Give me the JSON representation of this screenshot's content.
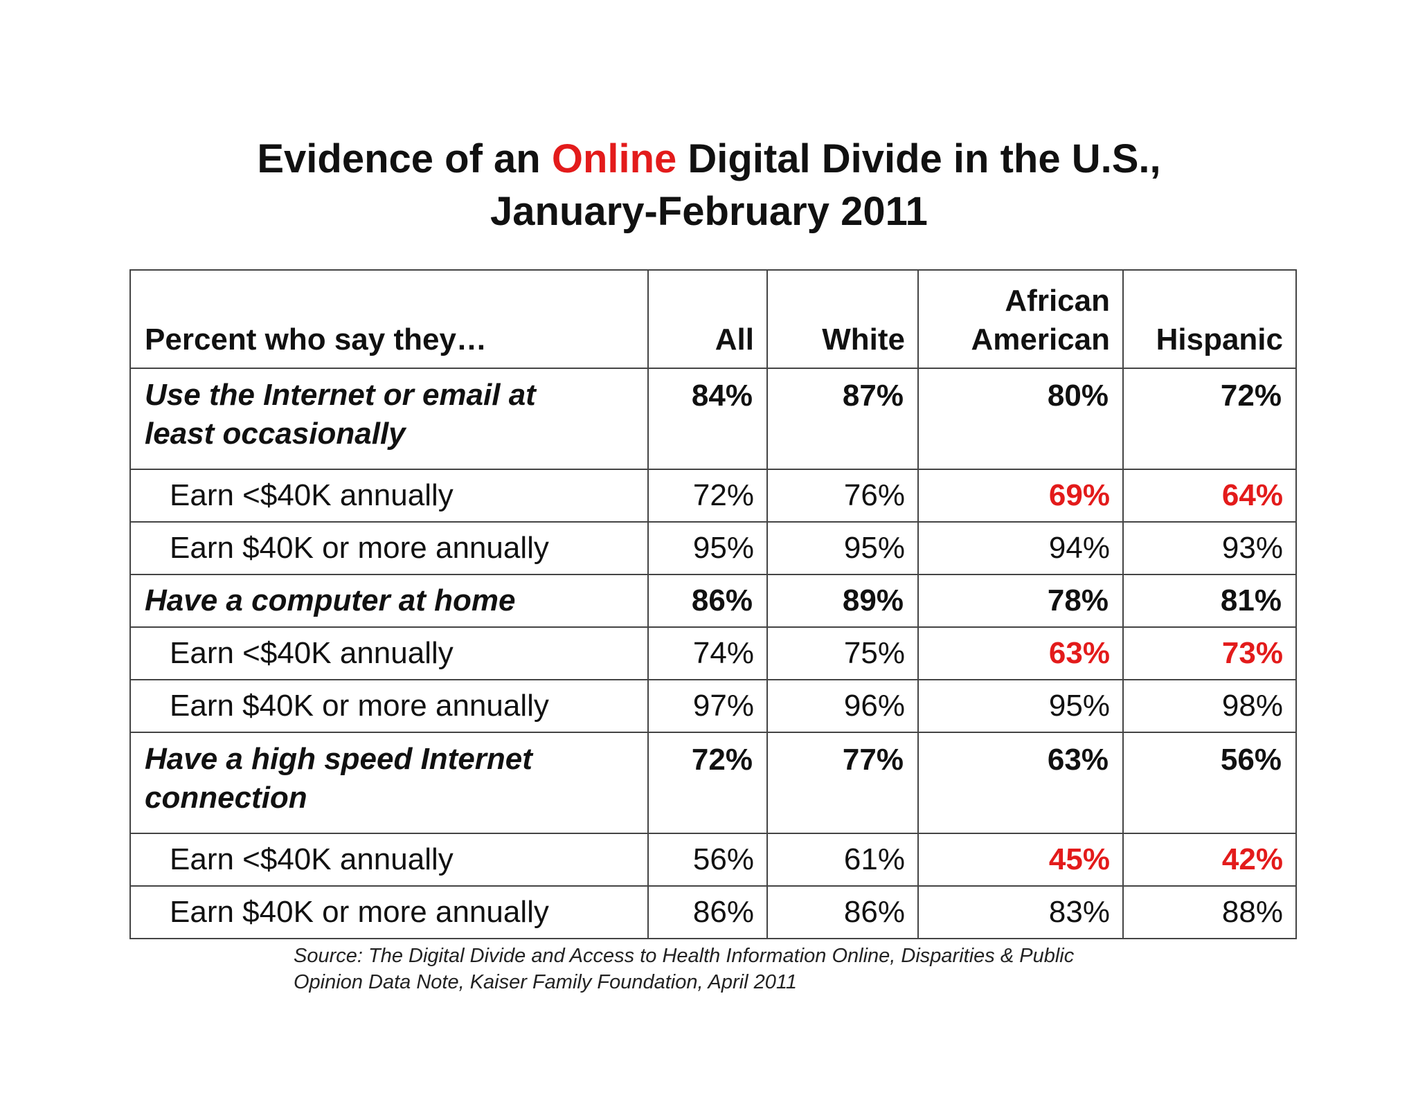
{
  "title": {
    "line1_before": "Evidence of an ",
    "line1_highlight": "Online",
    "line1_after": " Digital Divide in the U.S.,",
    "line2": "January-February 2011"
  },
  "source": {
    "line1": "Source: The Digital Divide and Access to Health Information Online, Disparities & Public",
    "line2": "Opinion Data Note,  Kaiser Family Foundation, April 2011"
  },
  "colors": {
    "text": "#111111",
    "highlight": "#e31b1b",
    "border": "#444444"
  },
  "chart_data": {
    "type": "table",
    "title": "Evidence of an Online Digital Divide in the U.S., January-February 2011",
    "headers": {
      "label": "Percent who say they…",
      "all": "All",
      "white": "White",
      "african_american_1": "African",
      "african_american_2": "American",
      "hispanic": "Hispanic"
    },
    "rows": [
      {
        "label_1": "Use the Internet or email at",
        "label_2": "least occasionally",
        "all": "84%",
        "white": "87%",
        "aa": "80%",
        "hisp": "72%",
        "kind": "section"
      },
      {
        "label": "Earn <$40K annually",
        "all": "72%",
        "white": "76%",
        "aa": "69%",
        "hisp": "64%",
        "kind": "sub",
        "highlight": [
          "aa",
          "hisp"
        ]
      },
      {
        "label": "Earn $40K or more annually",
        "all": "95%",
        "white": "95%",
        "aa": "94%",
        "hisp": "93%",
        "kind": "sub"
      },
      {
        "label": "Have a computer at home",
        "all": "86%",
        "white": "89%",
        "aa": "78%",
        "hisp": "81%",
        "kind": "section"
      },
      {
        "label": "Earn <$40K annually",
        "all": "74%",
        "white": "75%",
        "aa": "63%",
        "hisp": "73%",
        "kind": "sub",
        "highlight": [
          "aa",
          "hisp"
        ]
      },
      {
        "label": "Earn $40K or more annually",
        "all": "97%",
        "white": "96%",
        "aa": "95%",
        "hisp": "98%",
        "kind": "sub"
      },
      {
        "label_1": "Have a high speed Internet",
        "label_2": "connection",
        "all": "72%",
        "white": "77%",
        "aa": "63%",
        "hisp": "56%",
        "kind": "section"
      },
      {
        "label": "Earn <$40K annually",
        "all": "56%",
        "white": "61%",
        "aa": "45%",
        "hisp": "42%",
        "kind": "sub",
        "highlight": [
          "aa",
          "hisp"
        ]
      },
      {
        "label": "Earn $40K or more annually",
        "all": "86%",
        "white": "86%",
        "aa": "83%",
        "hisp": "88%",
        "kind": "sub"
      }
    ]
  }
}
